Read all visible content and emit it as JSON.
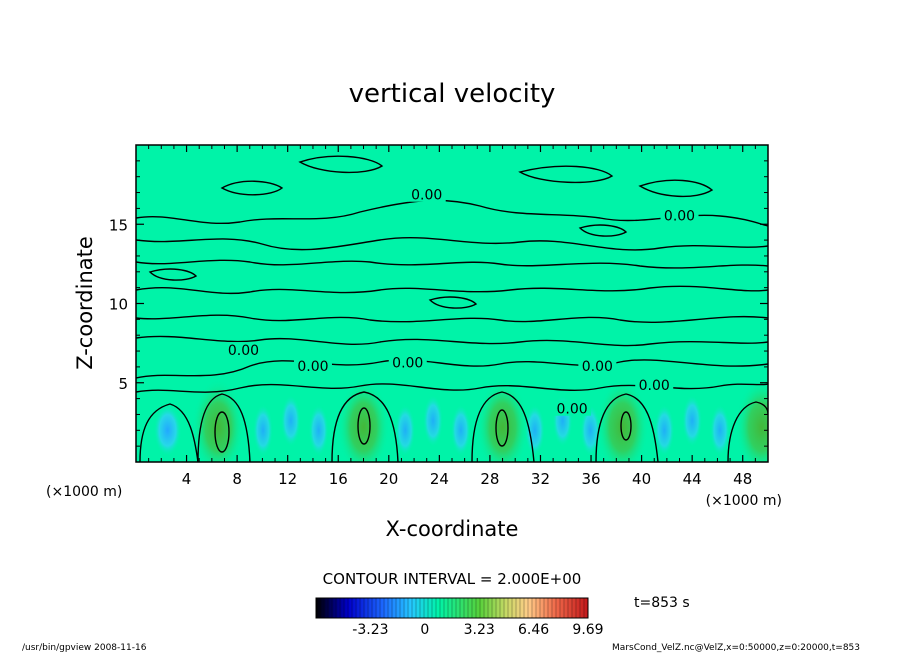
{
  "chart_data": {
    "type": "heatmap",
    "title": "vertical velocity",
    "xlabel": "X-coordinate",
    "ylabel": "Z-coordinate",
    "x_unit_left": "(×1000 m)",
    "x_unit_right": "(×1000 m)",
    "xlim": [
      0,
      50
    ],
    "ylim": [
      0,
      20
    ],
    "x_ticks": [
      "4",
      "8",
      "12",
      "16",
      "20",
      "24",
      "28",
      "32",
      "36",
      "40",
      "44",
      "48"
    ],
    "y_ticks": [
      "5",
      "10",
      "15"
    ],
    "updraft_centers_x": [
      6.5,
      18,
      29,
      38.5,
      49.5
    ],
    "contour_labels": [
      {
        "text": "0.00",
        "x": 23,
        "y": 16.8
      },
      {
        "text": "0.00",
        "x": 43,
        "y": 15.5
      },
      {
        "text": "0.00",
        "x": 8.5,
        "y": 7
      },
      {
        "text": "0.00",
        "x": 14,
        "y": 6
      },
      {
        "text": "0.00",
        "x": 21.5,
        "y": 6.2
      },
      {
        "text": "0.00",
        "x": 36.5,
        "y": 6
      },
      {
        "text": "0.00",
        "x": 34.5,
        "y": 3.3
      },
      {
        "text": "0.00",
        "x": 41,
        "y": 4.8
      }
    ],
    "contour_interval": "CONTOUR INTERVAL = 2.000E+00",
    "colorbar": {
      "ticks": [
        "-3.23",
        "0",
        "3.23",
        "6.46",
        "9.69"
      ],
      "tick_values": [
        -3.23,
        0,
        3.23,
        6.46,
        9.69
      ],
      "range": [
        -6.46,
        9.69
      ]
    },
    "time_label": "t=853 s",
    "background_color": "#00f3a8"
  },
  "footer": {
    "left": "/usr/bin/gpview  2008-11-16",
    "right": "MarsCond_VelZ.nc@VelZ,x=0:50000,z=0:20000,t=853"
  }
}
